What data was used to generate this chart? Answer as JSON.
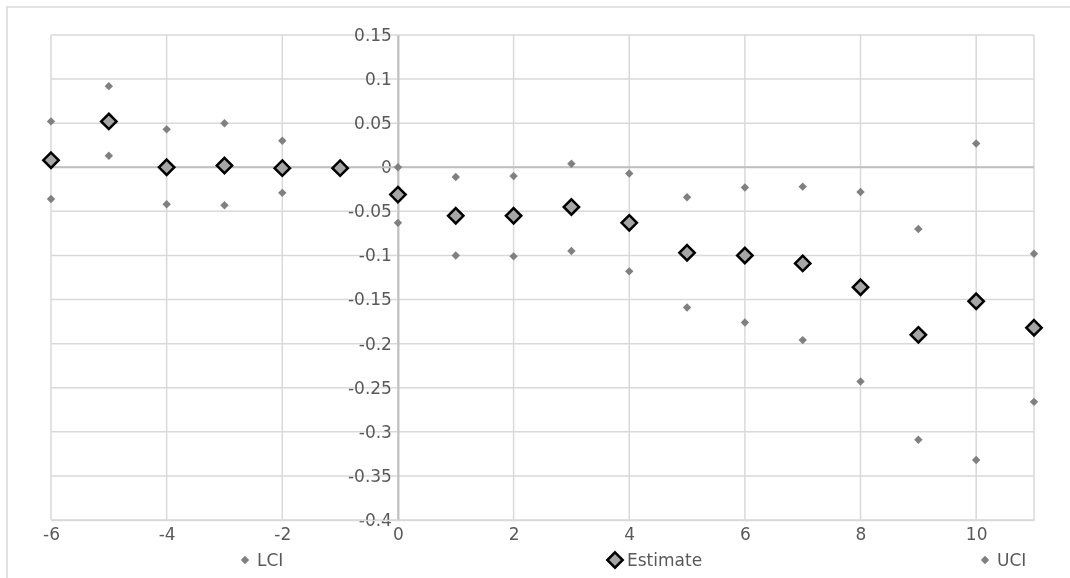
{
  "chart_data": {
    "type": "scatter",
    "x": [
      -6,
      -5,
      -4,
      -3,
      -2,
      -1,
      0,
      1,
      2,
      3,
      4,
      5,
      6,
      7,
      8,
      9,
      10,
      11
    ],
    "series": [
      {
        "name": "LCI",
        "color": "#808080",
        "marker": "diamond",
        "values": [
          -0.036,
          0.013,
          -0.042,
          -0.043,
          -0.029,
          null,
          -0.063,
          -0.1,
          -0.101,
          -0.095,
          -0.118,
          -0.159,
          -0.176,
          -0.196,
          -0.243,
          -0.309,
          -0.332,
          -0.266
        ]
      },
      {
        "name": "Estimate",
        "color": "#a6a6a6",
        "marker": "diamond",
        "values": [
          0.008,
          0.052,
          0.0,
          0.002,
          -0.001,
          -0.001,
          -0.031,
          -0.055,
          -0.055,
          -0.045,
          -0.063,
          -0.097,
          -0.1,
          -0.109,
          -0.136,
          -0.19,
          -0.152,
          -0.182
        ]
      },
      {
        "name": "UCI",
        "color": "#808080",
        "marker": "diamond",
        "values": [
          0.052,
          0.092,
          0.043,
          0.05,
          0.03,
          null,
          0.0,
          -0.011,
          -0.01,
          0.004,
          -0.007,
          -0.034,
          -0.023,
          -0.022,
          -0.028,
          -0.07,
          0.027,
          -0.098
        ]
      }
    ],
    "xlim": [
      -6,
      11
    ],
    "xticks": [
      -6,
      -4,
      -2,
      0,
      2,
      4,
      6,
      8,
      10
    ],
    "ylim": [
      -0.4,
      0.15
    ],
    "yticks": [
      {
        "value": -0.4,
        "label": "-0.4"
      },
      {
        "value": -0.35,
        "label": "-0.35"
      },
      {
        "value": -0.3,
        "label": "-0.3"
      },
      {
        "value": -0.25,
        "label": "-0.25"
      },
      {
        "value": -0.2,
        "label": "-0.2"
      },
      {
        "value": -0.15,
        "label": "-0.15"
      },
      {
        "value": -0.1,
        "label": "-0.1"
      },
      {
        "value": -0.05,
        "label": "-0.05"
      },
      {
        "value": 0,
        "label": "0"
      },
      {
        "value": 0.05,
        "label": "0.05"
      },
      {
        "value": 0.1,
        "label": "0.1"
      },
      {
        "value": 0.15,
        "label": "0.15"
      }
    ],
    "grid": true,
    "legend": "bottom"
  }
}
